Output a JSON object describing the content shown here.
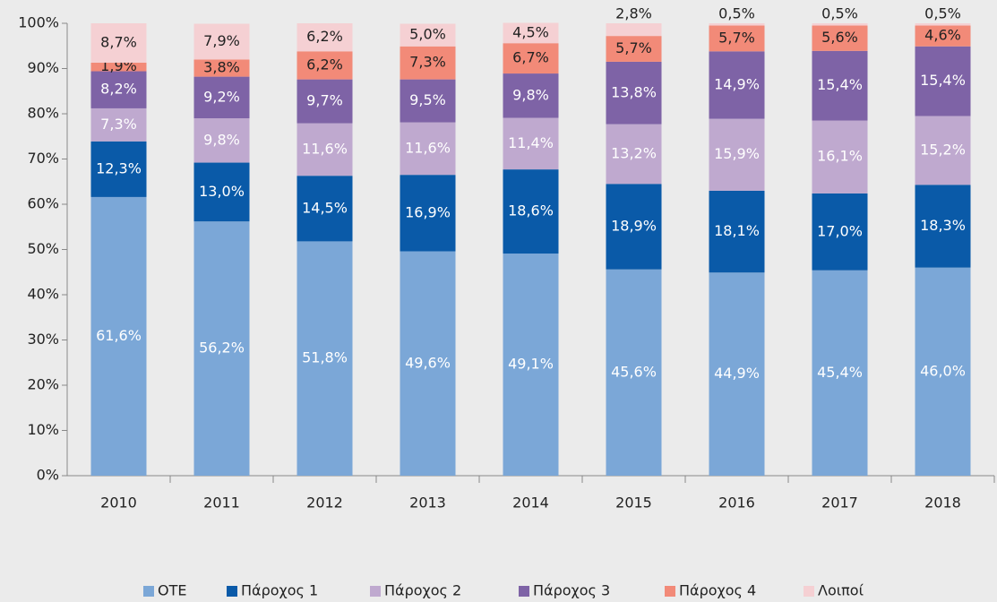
{
  "chart_data": {
    "type": "stacked_bar",
    "categories": [
      "2010",
      "2011",
      "2012",
      "2013",
      "2014",
      "2015",
      "2016",
      "2017",
      "2018"
    ],
    "series": [
      {
        "name": "OTE",
        "color": "#7ba7d7",
        "values": [
          61.6,
          56.2,
          51.8,
          49.6,
          49.1,
          45.6,
          44.9,
          45.4,
          46.0
        ],
        "value_labels": [
          "61,6%",
          "56,2%",
          "51,8%",
          "49,6%",
          "49,1%",
          "45,6%",
          "44,9%",
          "45,4%",
          "46,0%"
        ]
      },
      {
        "name": "Πάροχος 1",
        "color": "#0a5aa8",
        "values": [
          12.3,
          13.0,
          14.5,
          16.9,
          18.6,
          18.9,
          18.1,
          17.0,
          18.3
        ],
        "value_labels": [
          "12,3%",
          "13,0%",
          "14,5%",
          "16,9%",
          "18,6%",
          "18,9%",
          "18,1%",
          "17,0%",
          "18,3%"
        ]
      },
      {
        "name": "Πάροχος 2",
        "color": "#bfa9cf",
        "values": [
          7.3,
          9.8,
          11.6,
          11.6,
          11.4,
          13.2,
          15.9,
          16.1,
          15.2
        ],
        "value_labels": [
          "7,3%",
          "9,8%",
          "11,6%",
          "11,6%",
          "11,4%",
          "13,2%",
          "15,9%",
          "16,1%",
          "15,2%"
        ]
      },
      {
        "name": "Πάροχος 3",
        "color": "#7e63a6",
        "values": [
          8.2,
          9.2,
          9.7,
          9.5,
          9.8,
          13.8,
          14.9,
          15.4,
          15.4
        ],
        "value_labels": [
          "8,2%",
          "9,2%",
          "9,7%",
          "9,5%",
          "9,8%",
          "13,8%",
          "14,9%",
          "15,4%",
          "15,4%"
        ]
      },
      {
        "name": "Πάροχος 4",
        "color": "#f28a78",
        "values": [
          1.9,
          3.8,
          6.2,
          7.3,
          6.7,
          5.7,
          5.7,
          5.6,
          4.6
        ],
        "value_labels": [
          "1,9%",
          "3,8%",
          "6,2%",
          "7,3%",
          "6,7%",
          "5,7%",
          "5,7%",
          "5,6%",
          "4,6%"
        ]
      },
      {
        "name": "Λοιποί",
        "color": "#f5d0d3",
        "values": [
          8.7,
          7.9,
          6.2,
          5.0,
          4.5,
          2.8,
          0.5,
          0.5,
          0.5
        ],
        "value_labels": [
          "8,7%",
          "7,9%",
          "6,2%",
          "5,0%",
          "4,5%",
          "2,8%",
          "0,5%",
          "0,5%",
          "0,5%"
        ]
      }
    ],
    "ylim": [
      0,
      100
    ],
    "yticks": [
      {
        "value": 0,
        "label": "0%"
      },
      {
        "value": 10,
        "label": "10%"
      },
      {
        "value": 20,
        "label": "20%"
      },
      {
        "value": 30,
        "label": "30%"
      },
      {
        "value": 40,
        "label": "40%"
      },
      {
        "value": 50,
        "label": "50%"
      },
      {
        "value": 60,
        "label": "60%"
      },
      {
        "value": 70,
        "label": "70%"
      },
      {
        "value": 80,
        "label": "80%"
      },
      {
        "value": 90,
        "label": "90%"
      },
      {
        "value": 100,
        "label": "100%"
      }
    ],
    "legend": "bottom"
  }
}
